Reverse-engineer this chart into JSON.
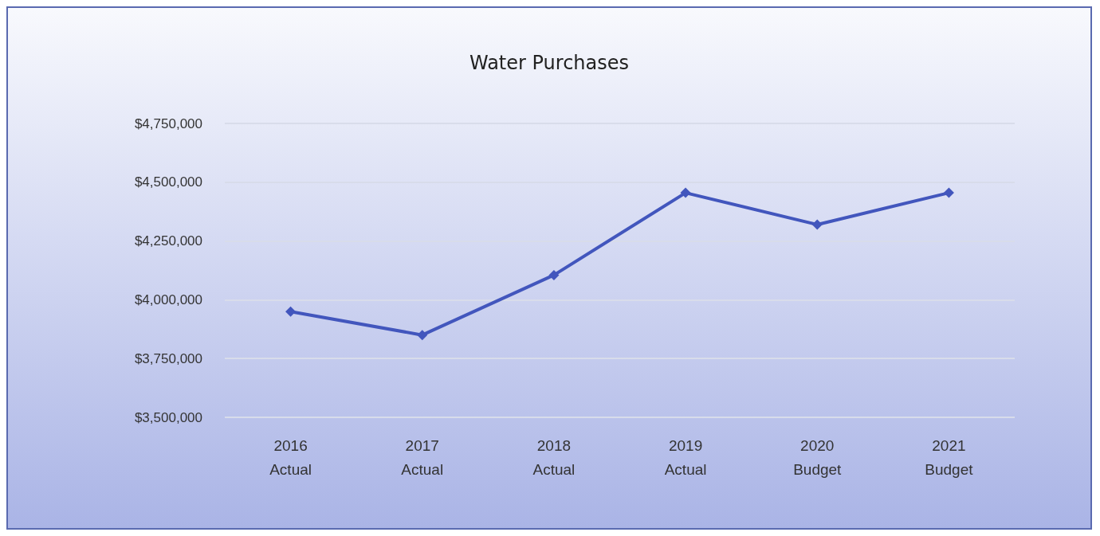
{
  "chart_data": {
    "type": "line",
    "title": "Water Purchases",
    "categories": [
      "2016\nActual",
      "2017\nActual",
      "2018\nActual",
      "2019\nActual",
      "2020\nBudget",
      "2021\nBudget"
    ],
    "series": [
      {
        "color": "#4256bd",
        "values": [
          3950000,
          3850000,
          4105000,
          4455000,
          4320000,
          4455000
        ]
      }
    ],
    "ylim": [
      3500000,
      4750000
    ],
    "yticks": [
      {
        "value": 3500000,
        "label": "$3,500,000"
      },
      {
        "value": 3750000,
        "label": "$3,750,000"
      },
      {
        "value": 4000000,
        "label": "$4,000,000"
      },
      {
        "value": 4250000,
        "label": "$4,250,000"
      },
      {
        "value": 4500000,
        "label": "$4,500,000"
      },
      {
        "value": 4750000,
        "label": "$4,750,000"
      }
    ],
    "grid": "y",
    "marker": "diamond",
    "line_style": "solid"
  }
}
